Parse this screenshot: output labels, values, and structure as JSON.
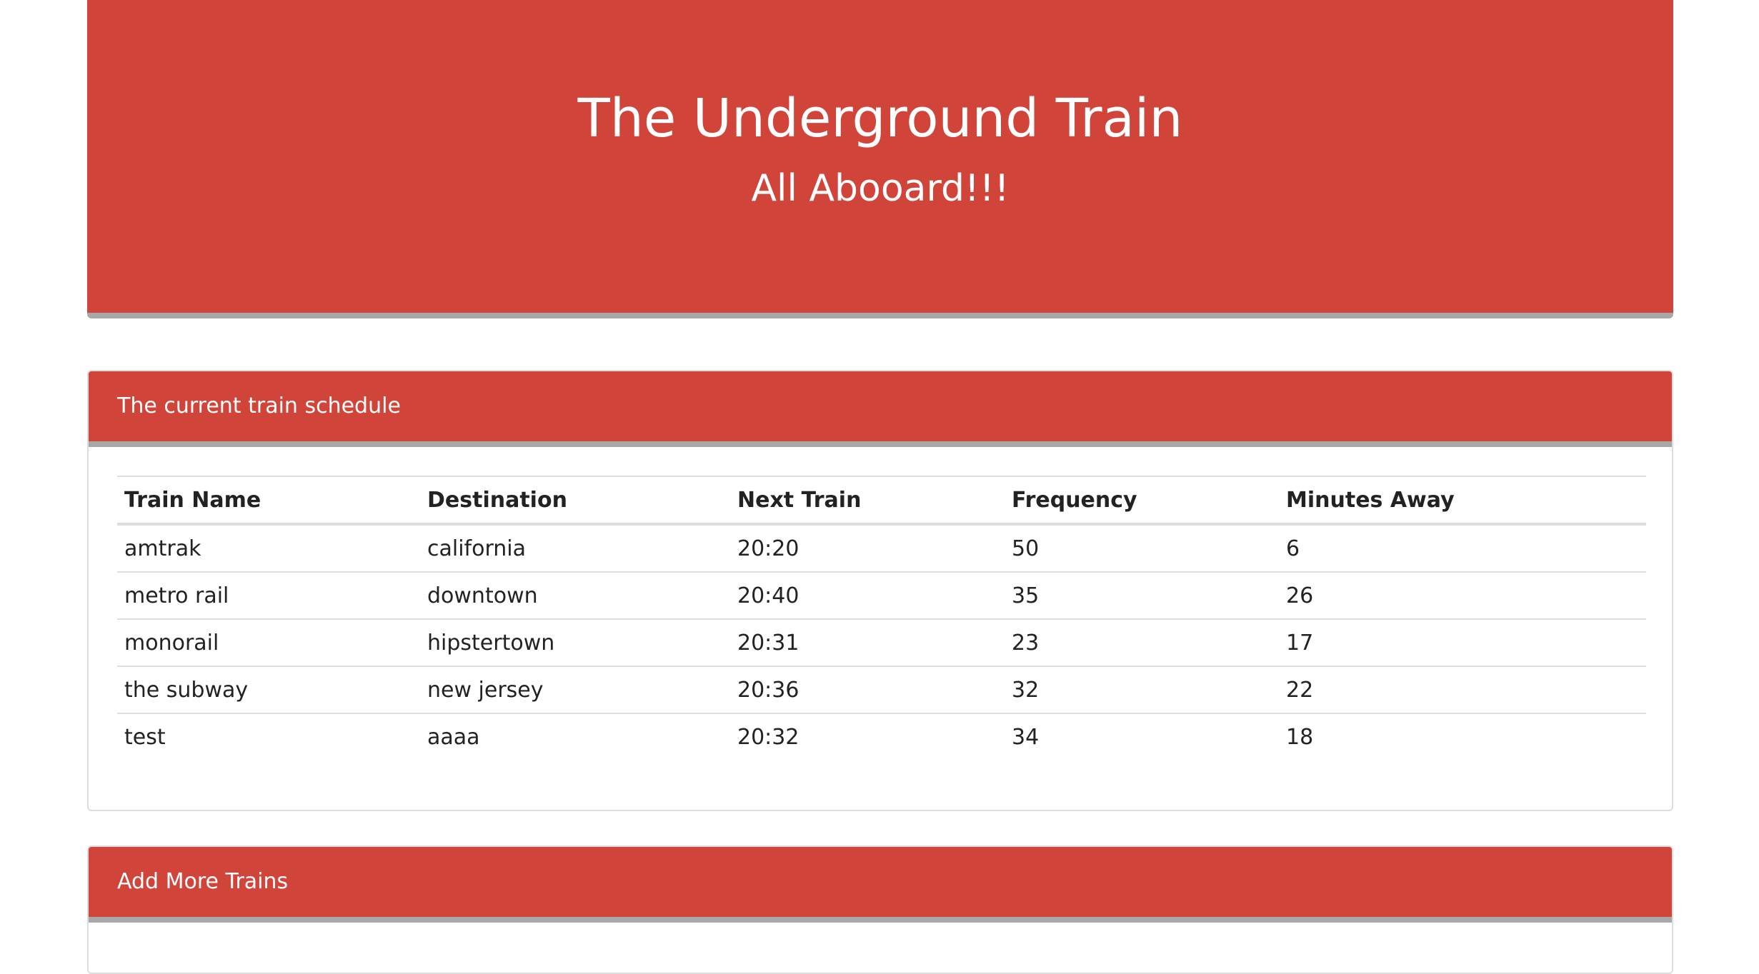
{
  "header": {
    "title": "The Underground Train",
    "subtitle": "All Abooard!!!"
  },
  "schedule_panel": {
    "heading": "The current train schedule",
    "columns": [
      "Train Name",
      "Destination",
      "Next Train",
      "Frequency",
      "Minutes Away"
    ],
    "rows": [
      {
        "name": "amtrak",
        "destination": "california",
        "next_train": "20:20",
        "frequency": "50",
        "minutes_away": "6"
      },
      {
        "name": "metro rail",
        "destination": "downtown",
        "next_train": "20:40",
        "frequency": "35",
        "minutes_away": "26"
      },
      {
        "name": "monorail",
        "destination": "hipstertown",
        "next_train": "20:31",
        "frequency": "23",
        "minutes_away": "17"
      },
      {
        "name": "the subway",
        "destination": "new jersey",
        "next_train": "20:36",
        "frequency": "32",
        "minutes_away": "22"
      },
      {
        "name": "test",
        "destination": "aaaa",
        "next_train": "20:32",
        "frequency": "34",
        "minutes_away": "18"
      }
    ]
  },
  "add_panel": {
    "heading": "Add More Trains"
  },
  "colors": {
    "brand_red": "#d1443a",
    "accent_gray": "#a8a8a8"
  }
}
